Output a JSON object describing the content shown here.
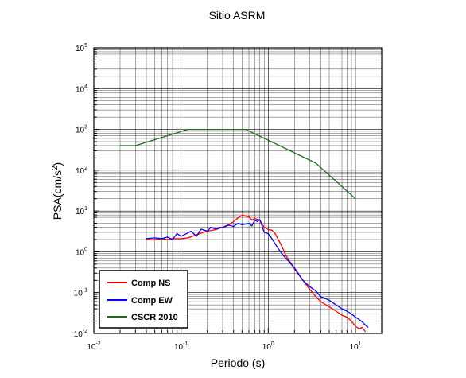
{
  "chart_data": {
    "type": "line",
    "title": "Sitio ASRM",
    "xlabel": "Periodo (s)",
    "ylabel_main": "PSA(cm/s",
    "ylabel_sup": "2",
    "ylabel_tail": ")",
    "x_scale": "log",
    "y_scale": "log",
    "xlim": [
      0.01,
      20
    ],
    "ylim": [
      0.01,
      100000
    ],
    "grid": true,
    "legend_position": "bottom-left",
    "x_ticks": [
      {
        "value": 0.01,
        "base": "10",
        "exp": "-2"
      },
      {
        "value": 0.1,
        "base": "10",
        "exp": "-1"
      },
      {
        "value": 1,
        "base": "10",
        "exp": "0"
      },
      {
        "value": 10,
        "base": "10",
        "exp": "1"
      }
    ],
    "y_ticks": [
      {
        "value": 0.01,
        "base": "10",
        "exp": "-2"
      },
      {
        "value": 0.1,
        "base": "10",
        "exp": "-1"
      },
      {
        "value": 1,
        "base": "10",
        "exp": "0"
      },
      {
        "value": 10,
        "base": "10",
        "exp": "1"
      },
      {
        "value": 100,
        "base": "10",
        "exp": "2"
      },
      {
        "value": 1000,
        "base": "10",
        "exp": "3"
      },
      {
        "value": 10000,
        "base": "10",
        "exp": "4"
      },
      {
        "value": 100000,
        "base": "10",
        "exp": "5"
      }
    ],
    "series": [
      {
        "name": "Comp NS",
        "color": "#ff0000",
        "x": [
          0.04,
          0.05,
          0.06,
          0.07,
          0.08,
          0.1,
          0.12,
          0.15,
          0.18,
          0.2,
          0.25,
          0.3,
          0.35,
          0.4,
          0.45,
          0.5,
          0.55,
          0.6,
          0.65,
          0.7,
          0.8,
          0.9,
          1.0,
          1.1,
          1.2,
          1.4,
          1.6,
          1.8,
          2.0,
          2.5,
          3.0,
          3.5,
          4.0,
          5.0,
          6.0,
          7.0,
          8.0,
          9.0,
          10.0,
          11.0,
          12.0,
          13.0
        ],
        "y": [
          2.0,
          2.0,
          2.1,
          2.0,
          2.1,
          2.1,
          2.2,
          2.6,
          3.0,
          3.2,
          3.5,
          4.0,
          4.6,
          5.5,
          6.8,
          7.8,
          7.5,
          7.2,
          6.0,
          6.5,
          6.0,
          4.0,
          3.5,
          3.4,
          2.8,
          1.5,
          0.8,
          0.55,
          0.38,
          0.2,
          0.12,
          0.08,
          0.06,
          0.045,
          0.035,
          0.028,
          0.025,
          0.02,
          0.015,
          0.013,
          0.014,
          0.011
        ]
      },
      {
        "name": "Comp EW",
        "color": "#0000ff",
        "x": [
          0.04,
          0.05,
          0.06,
          0.07,
          0.08,
          0.09,
          0.1,
          0.12,
          0.13,
          0.15,
          0.17,
          0.2,
          0.22,
          0.25,
          0.28,
          0.3,
          0.35,
          0.4,
          0.45,
          0.5,
          0.55,
          0.6,
          0.65,
          0.7,
          0.75,
          0.8,
          0.9,
          1.0,
          1.1,
          1.3,
          1.5,
          1.7,
          2.0,
          2.5,
          3.0,
          3.5,
          4.0,
          5.0,
          6.0,
          7.0,
          8.0,
          9.0,
          10.0,
          11.0,
          12.0,
          13.0,
          14.0
        ],
        "y": [
          2.1,
          2.2,
          2.1,
          2.3,
          2.0,
          2.8,
          2.4,
          2.9,
          3.2,
          2.4,
          3.6,
          3.2,
          4.0,
          3.6,
          4.0,
          3.9,
          4.5,
          4.2,
          5.0,
          4.6,
          4.8,
          5.0,
          4.3,
          6.0,
          5.5,
          6.2,
          3.0,
          2.8,
          2.1,
          1.2,
          0.8,
          0.6,
          0.4,
          0.2,
          0.14,
          0.11,
          0.08,
          0.065,
          0.05,
          0.04,
          0.035,
          0.03,
          0.025,
          0.022,
          0.019,
          0.016,
          0.014
        ]
      },
      {
        "name": "CSCR 2010",
        "color": "#1a6e1a",
        "x": [
          0.02,
          0.03,
          0.12,
          0.55,
          3.5,
          10.0
        ],
        "y": [
          400,
          400,
          1000,
          1000,
          150,
          20
        ]
      }
    ]
  }
}
